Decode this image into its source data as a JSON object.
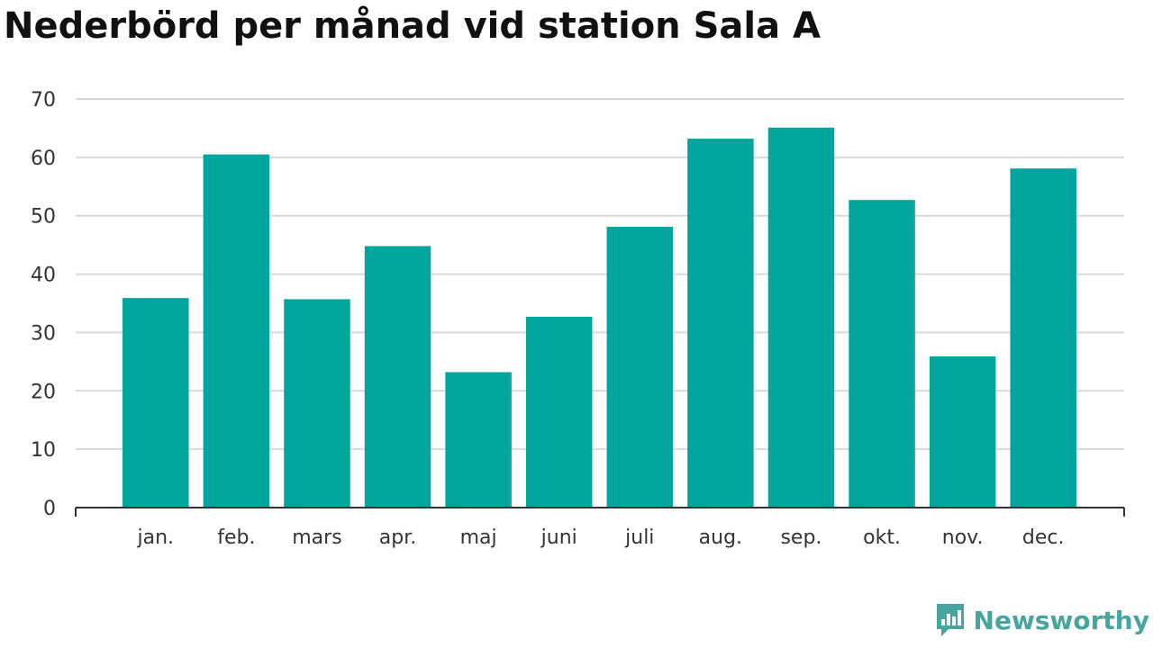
{
  "title": "Nederbörd per månad vid station Sala A",
  "brand": {
    "name": "Newsworthy",
    "color": "#47a59e"
  },
  "chart_data": {
    "type": "bar",
    "title": "Nederbörd per månad vid station Sala A",
    "categories": [
      "jan.",
      "feb.",
      "mars",
      "apr.",
      "maj",
      "juni",
      "juli",
      "aug.",
      "sep.",
      "okt.",
      "nov.",
      "dec."
    ],
    "values": [
      35.9,
      60.5,
      35.7,
      44.8,
      23.2,
      32.7,
      48.1,
      63.2,
      65.1,
      52.7,
      25.9,
      58.1
    ],
    "ylim": [
      0,
      70
    ],
    "yticks": [
      0,
      10,
      20,
      30,
      40,
      50,
      60,
      70
    ],
    "grid": true,
    "bar_color": "#00a59b",
    "grid_color": "#d9d9d9",
    "axis_color": "#333333",
    "xlabel": "",
    "ylabel": ""
  }
}
